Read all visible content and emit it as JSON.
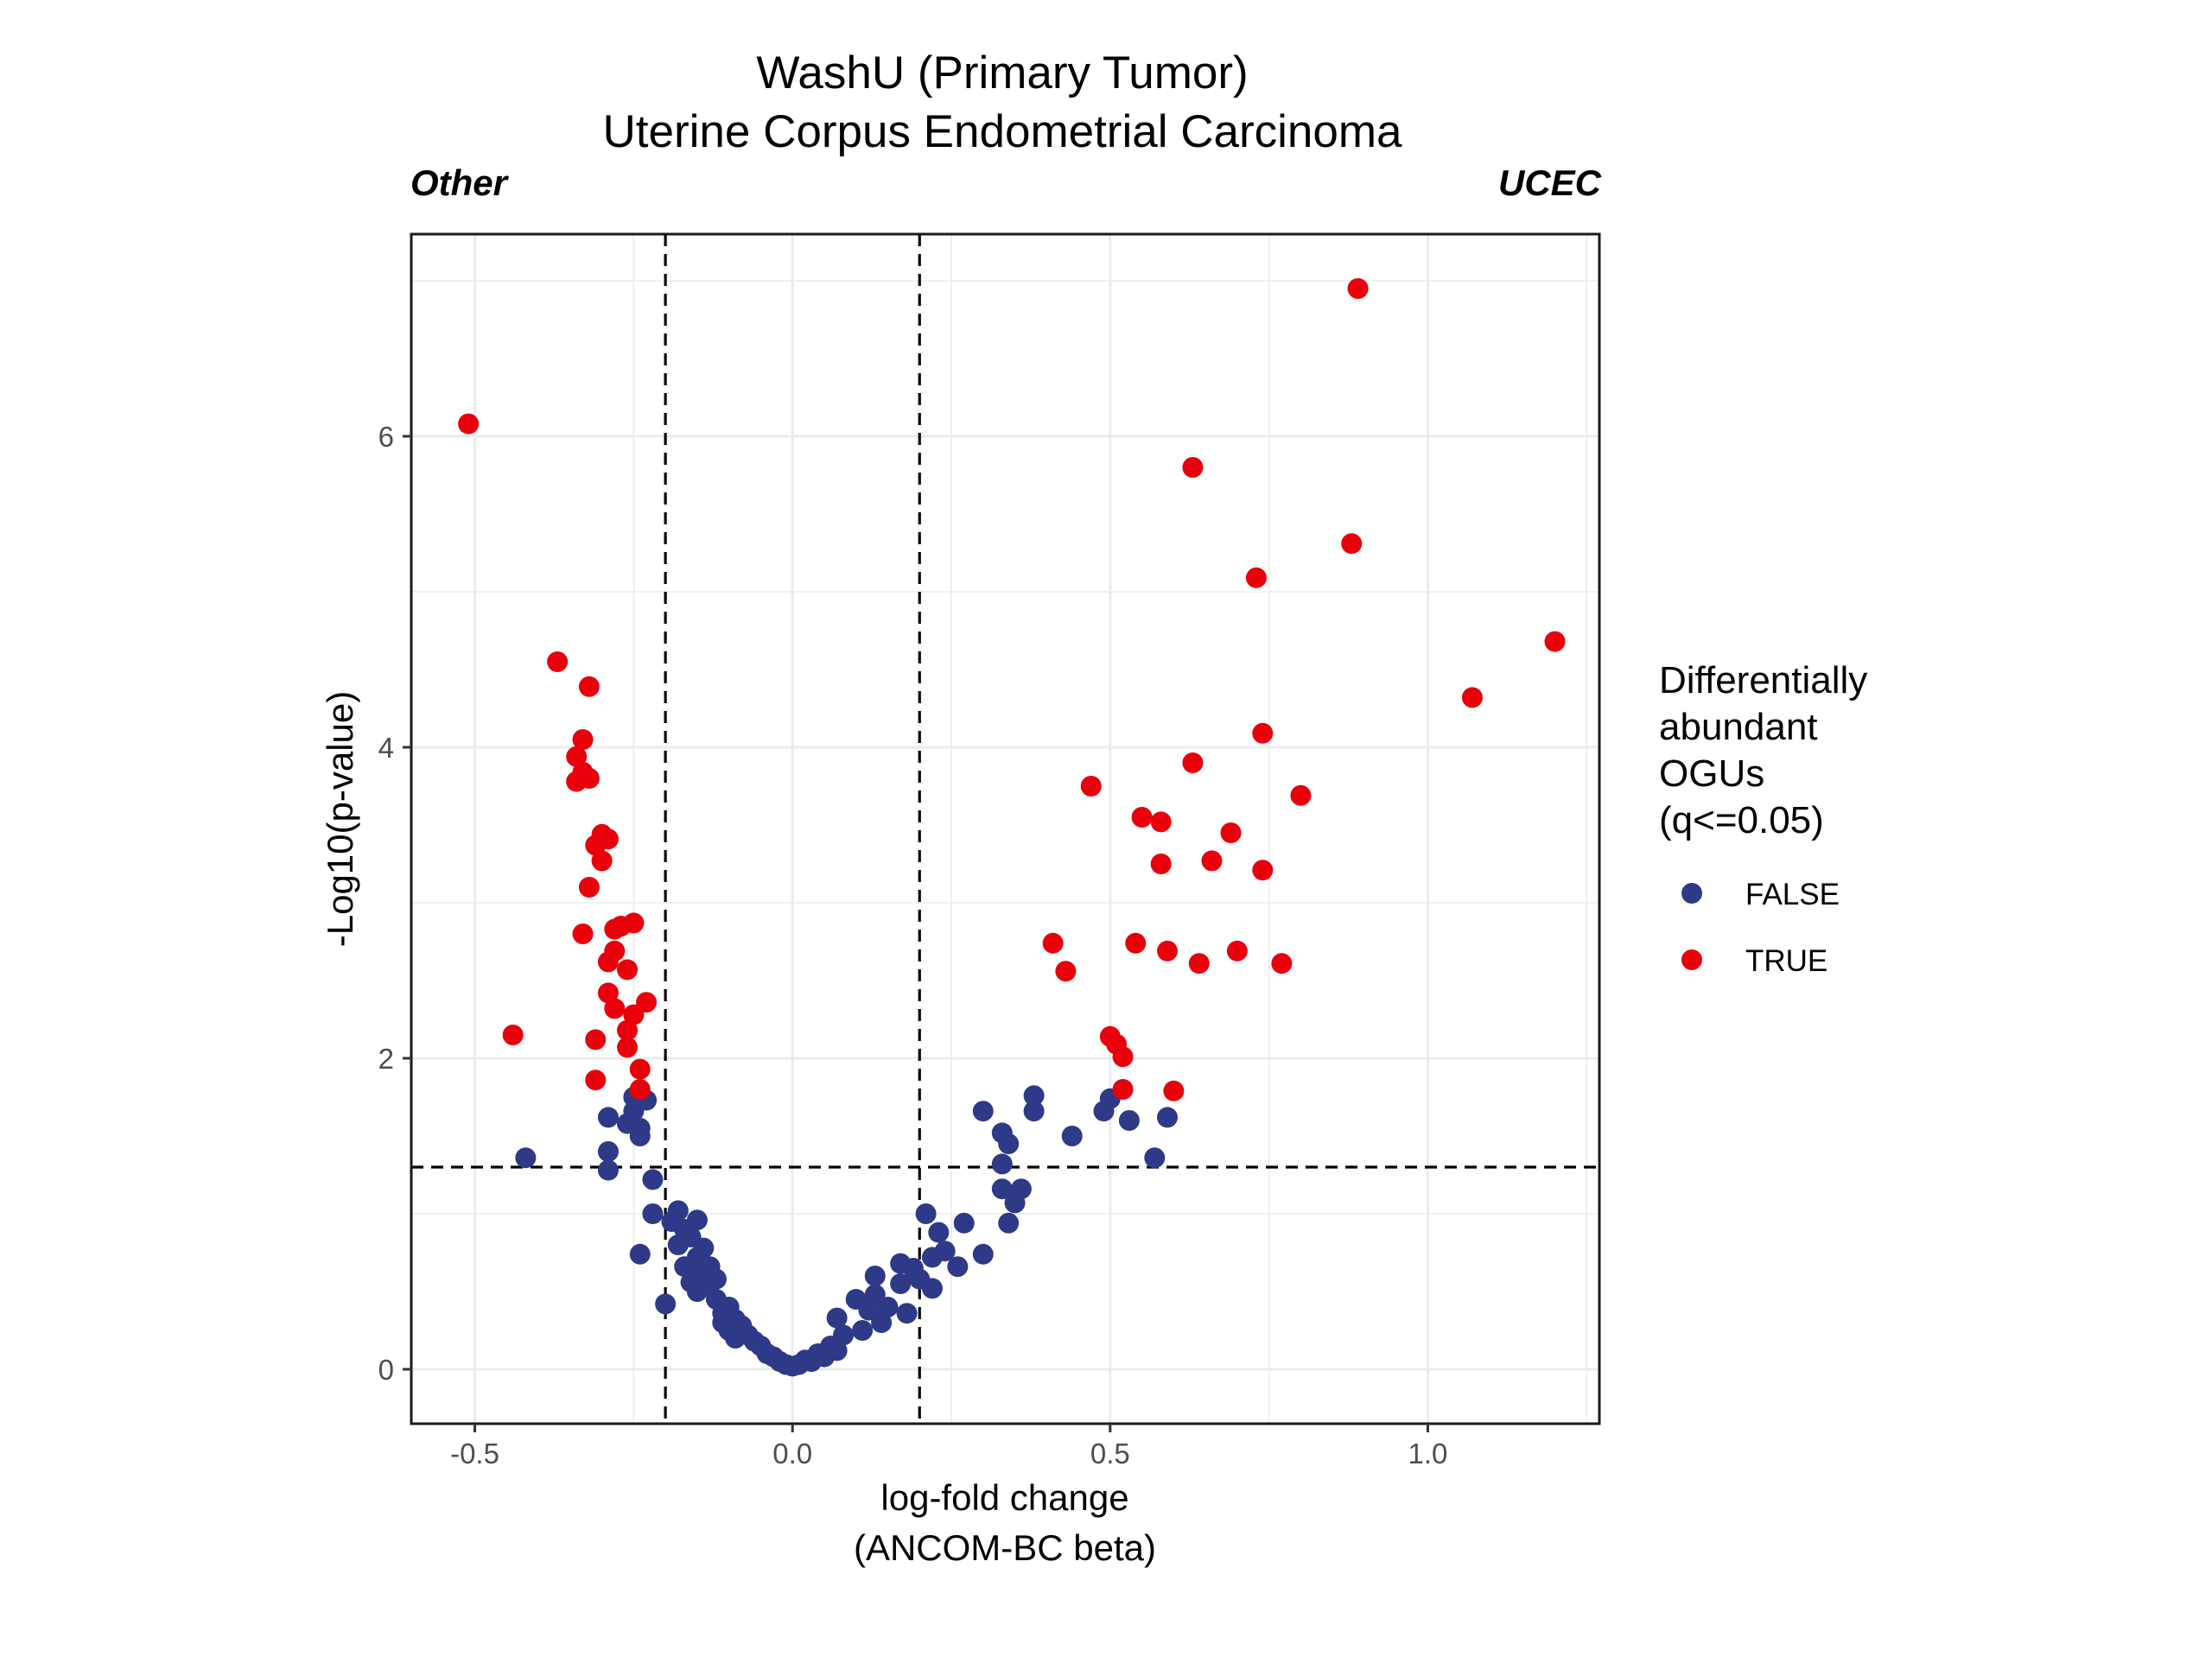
{
  "chart_data": {
    "type": "scatter",
    "title": "WashU (Primary Tumor)",
    "subtitle": "Uterine Corpus Endometrial Carcinoma",
    "left_annotation": "Other",
    "right_annotation": "UCEC",
    "xlabel_lines": [
      "log-fold change",
      "(ANCOM-BC beta)"
    ],
    "ylabel": "-Log10(p-value)",
    "xlim": [
      -0.6,
      1.27
    ],
    "ylim": [
      -0.35,
      7.3
    ],
    "x_ticks": [
      -0.5,
      0.0,
      0.5,
      1.0
    ],
    "x_tick_labels": [
      "-0.5",
      "0.0",
      "0.5",
      "1.0"
    ],
    "y_ticks": [
      0,
      2,
      4,
      6
    ],
    "y_tick_labels": [
      "0",
      "2",
      "4",
      "6"
    ],
    "grid": true,
    "legend_position": "right",
    "reference_lines": {
      "vertical": [
        -0.2,
        0.2
      ],
      "horizontal": [
        1.3
      ],
      "style": "dashed"
    },
    "legend": {
      "title_lines": [
        "Differentially",
        "abundant",
        "OGUs",
        "(q<=0.05)"
      ],
      "entries": [
        {
          "label": "FALSE",
          "color": "#2e3a87"
        },
        {
          "label": "TRUE",
          "color": "#e8000b"
        }
      ]
    },
    "series": [
      {
        "name": "FALSE",
        "color": "#2e3a87",
        "points": [
          [
            -0.42,
            1.36
          ],
          [
            -0.29,
            1.62
          ],
          [
            -0.29,
            1.4
          ],
          [
            -0.29,
            1.28
          ],
          [
            -0.26,
            1.58
          ],
          [
            -0.25,
            1.66
          ],
          [
            -0.25,
            1.75
          ],
          [
            -0.24,
            1.5
          ],
          [
            -0.24,
            1.55
          ],
          [
            -0.23,
            1.73
          ],
          [
            -0.22,
            1.22
          ],
          [
            -0.22,
            1.0
          ],
          [
            -0.2,
            0.42
          ],
          [
            -0.24,
            0.74
          ],
          [
            -0.19,
            0.95
          ],
          [
            -0.18,
            0.8
          ],
          [
            -0.18,
            1.02
          ],
          [
            -0.17,
            0.9
          ],
          [
            -0.17,
            0.66
          ],
          [
            -0.16,
            0.56
          ],
          [
            -0.16,
            0.85
          ],
          [
            -0.15,
            0.96
          ],
          [
            -0.15,
            0.72
          ],
          [
            -0.15,
            0.5
          ],
          [
            -0.14,
            0.78
          ],
          [
            -0.14,
            0.62
          ],
          [
            -0.13,
            0.55
          ],
          [
            -0.13,
            0.66
          ],
          [
            -0.12,
            0.45
          ],
          [
            -0.12,
            0.58
          ],
          [
            -0.11,
            0.3
          ],
          [
            -0.11,
            0.36
          ],
          [
            -0.1,
            0.4
          ],
          [
            -0.1,
            0.25
          ],
          [
            -0.09,
            0.32
          ],
          [
            -0.09,
            0.2
          ],
          [
            -0.08,
            0.28
          ],
          [
            -0.07,
            0.22
          ],
          [
            -0.06,
            0.18
          ],
          [
            -0.05,
            0.15
          ],
          [
            -0.04,
            0.1
          ],
          [
            -0.03,
            0.08
          ],
          [
            -0.02,
            0.05
          ],
          [
            -0.01,
            0.03
          ],
          [
            0.0,
            0.02
          ],
          [
            0.01,
            0.03
          ],
          [
            0.02,
            0.06
          ],
          [
            0.03,
            0.05
          ],
          [
            0.04,
            0.1
          ],
          [
            0.05,
            0.08
          ],
          [
            0.06,
            0.15
          ],
          [
            0.07,
            0.12
          ],
          [
            0.07,
            0.33
          ],
          [
            0.08,
            0.22
          ],
          [
            0.1,
            0.45
          ],
          [
            0.11,
            0.25
          ],
          [
            0.12,
            0.38
          ],
          [
            0.13,
            0.48
          ],
          [
            0.13,
            0.6
          ],
          [
            0.14,
            0.3
          ],
          [
            0.15,
            0.4
          ],
          [
            0.17,
            0.55
          ],
          [
            0.17,
            0.68
          ],
          [
            0.18,
            0.36
          ],
          [
            0.19,
            0.65
          ],
          [
            0.2,
            0.58
          ],
          [
            0.21,
            1.0
          ],
          [
            0.22,
            0.52
          ],
          [
            0.22,
            0.72
          ],
          [
            0.23,
            0.88
          ],
          [
            0.24,
            0.76
          ],
          [
            0.26,
            0.66
          ],
          [
            0.27,
            0.94
          ],
          [
            0.3,
            0.74
          ],
          [
            0.3,
            1.66
          ],
          [
            0.33,
            1.16
          ],
          [
            0.33,
            1.32
          ],
          [
            0.33,
            1.52
          ],
          [
            0.34,
            1.45
          ],
          [
            0.34,
            0.94
          ],
          [
            0.35,
            1.07
          ],
          [
            0.36,
            1.16
          ],
          [
            0.38,
            1.66
          ],
          [
            0.38,
            1.76
          ],
          [
            0.44,
            1.5
          ],
          [
            0.49,
            1.66
          ],
          [
            0.5,
            1.74
          ],
          [
            0.53,
            1.6
          ],
          [
            0.57,
            1.36
          ],
          [
            0.59,
            1.62
          ]
        ]
      },
      {
        "name": "TRUE",
        "color": "#e8000b",
        "points": [
          [
            -0.51,
            6.08
          ],
          [
            -0.44,
            2.15
          ],
          [
            -0.37,
            4.55
          ],
          [
            -0.34,
            3.94
          ],
          [
            -0.34,
            3.78
          ],
          [
            -0.33,
            4.05
          ],
          [
            -0.33,
            3.84
          ],
          [
            -0.32,
            3.8
          ],
          [
            -0.32,
            4.39
          ],
          [
            -0.32,
            3.1
          ],
          [
            -0.33,
            2.8
          ],
          [
            -0.31,
            3.37
          ],
          [
            -0.3,
            3.44
          ],
          [
            -0.29,
            3.41
          ],
          [
            -0.3,
            3.27
          ],
          [
            -0.31,
            2.12
          ],
          [
            -0.31,
            1.86
          ],
          [
            -0.29,
            2.62
          ],
          [
            -0.28,
            2.69
          ],
          [
            -0.28,
            2.83
          ],
          [
            -0.27,
            2.85
          ],
          [
            -0.28,
            2.32
          ],
          [
            -0.29,
            2.42
          ],
          [
            -0.26,
            2.57
          ],
          [
            -0.26,
            2.18
          ],
          [
            -0.25,
            2.87
          ],
          [
            -0.26,
            2.07
          ],
          [
            -0.25,
            2.28
          ],
          [
            -0.24,
            1.93
          ],
          [
            -0.24,
            1.8
          ],
          [
            -0.23,
            2.36
          ],
          [
            0.41,
            2.74
          ],
          [
            0.43,
            2.56
          ],
          [
            0.47,
            3.75
          ],
          [
            0.5,
            2.14
          ],
          [
            0.51,
            2.09
          ],
          [
            0.52,
            2.01
          ],
          [
            0.52,
            1.8
          ],
          [
            0.54,
            2.74
          ],
          [
            0.55,
            3.55
          ],
          [
            0.58,
            3.52
          ],
          [
            0.58,
            3.25
          ],
          [
            0.59,
            2.69
          ],
          [
            0.6,
            1.79
          ],
          [
            0.63,
            3.9
          ],
          [
            0.63,
            5.8
          ],
          [
            0.64,
            2.61
          ],
          [
            0.66,
            3.27
          ],
          [
            0.69,
            3.45
          ],
          [
            0.7,
            2.69
          ],
          [
            0.73,
            5.09
          ],
          [
            0.74,
            4.09
          ],
          [
            0.74,
            3.21
          ],
          [
            0.77,
            2.61
          ],
          [
            0.8,
            3.69
          ],
          [
            0.88,
            5.31
          ],
          [
            0.89,
            6.95
          ],
          [
            1.07,
            4.32
          ],
          [
            1.2,
            4.68
          ]
        ]
      }
    ]
  }
}
